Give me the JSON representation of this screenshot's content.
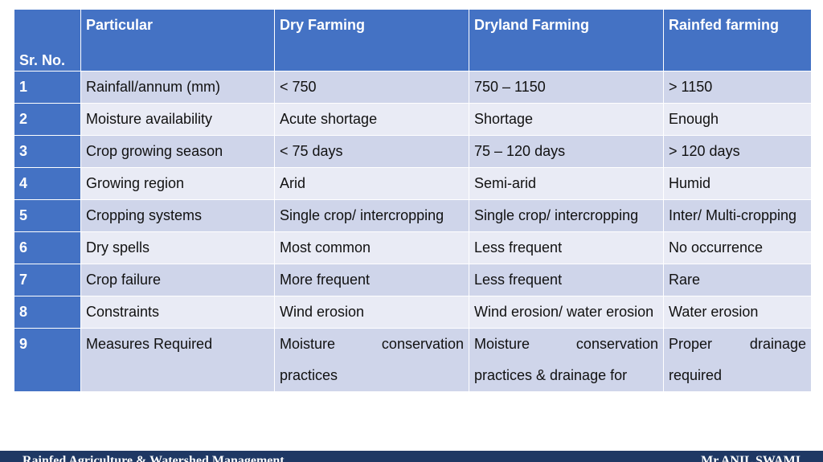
{
  "table": {
    "headers": {
      "sr": "Sr. No.",
      "particular": "Particular",
      "dry": "Dry Farming",
      "dryland": "Dryland Farming",
      "rainfed": "Rainfed farming"
    },
    "rows": [
      {
        "sr": "1",
        "particular": "Rainfall/annum (mm)",
        "dry": "< 750",
        "dryland": "750 – 1150",
        "rainfed": "> 1150"
      },
      {
        "sr": "2",
        "particular": "Moisture availability",
        "dry": "Acute shortage",
        "dryland": "Shortage",
        "rainfed": "Enough"
      },
      {
        "sr": "3",
        "particular": "Crop growing season",
        "dry": "< 75 days",
        "dryland": "75 – 120 days",
        "rainfed": "> 120 days"
      },
      {
        "sr": "4",
        "particular": "Growing region",
        "dry": "Arid",
        "dryland": "Semi-arid",
        "rainfed": "Humid"
      },
      {
        "sr": "5",
        "particular": "Cropping systems",
        "dry": "Single crop/ intercropping",
        "dryland": "Single crop/ intercropping",
        "rainfed": "Inter/ Multi-cropping"
      },
      {
        "sr": "6",
        "particular": "Dry spells",
        "dry": "Most common",
        "dryland": "Less frequent",
        "rainfed": "No occurrence"
      },
      {
        "sr": "7",
        "particular": "Crop failure",
        "dry": "More frequent",
        "dryland": "Less frequent",
        "rainfed": "Rare"
      },
      {
        "sr": "8",
        "particular": "Constraints",
        "dry": "Wind erosion",
        "dryland": "Wind erosion/ water erosion",
        "rainfed": "Water erosion"
      },
      {
        "sr": "9",
        "particular": "Measures Required",
        "dry": "Moisture conservation practices",
        "dryland": "Moisture conservation practices & drainage for",
        "rainfed": "Proper drainage required"
      }
    ]
  },
  "footer": {
    "left": "Rainfed Agriculture & Watershed Management",
    "right": "Mr.ANIL SWAMI"
  },
  "colors": {
    "header_bg": "#4472c4",
    "row_odd": "#cfd5ea",
    "row_even": "#e9ebf5",
    "footer_bg": "#1f3864"
  }
}
